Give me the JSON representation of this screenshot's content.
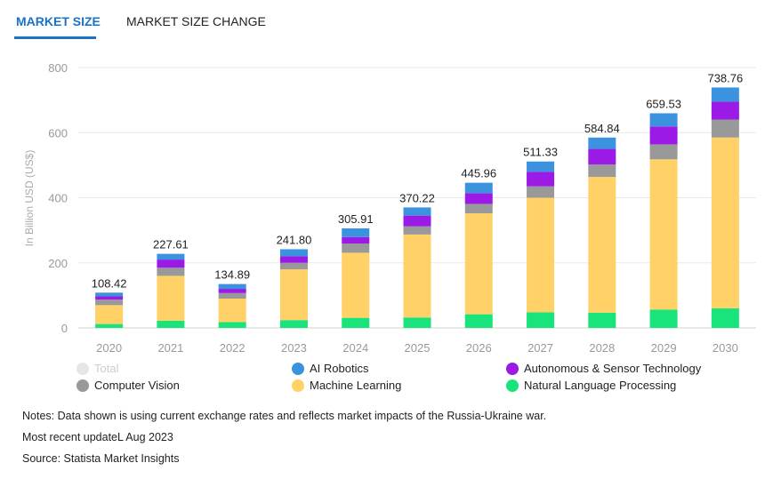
{
  "tabs": [
    {
      "label": "MARKET SIZE",
      "active": true
    },
    {
      "label": "MARKET SIZE CHANGE",
      "active": false
    }
  ],
  "colors": {
    "accent": "#1a73c9",
    "Total": "#e6e6e6",
    "AI Robotics": "#3b93e0",
    "Autonomous & Sensor Technology": "#9b1ae6",
    "Computer Vision": "#999999",
    "Machine Learning": "#ffd166",
    "Natural Language Processing": "#19e37b"
  },
  "chart_data": {
    "type": "bar",
    "stacked": true,
    "ylabel": "In Billion USD (US$)",
    "xlabel": "",
    "ylim": [
      0,
      800
    ],
    "yticks": [
      0,
      200,
      400,
      600,
      800
    ],
    "grid": true,
    "categories": [
      "2020",
      "2021",
      "2022",
      "2023",
      "2024",
      "2025",
      "2026",
      "2027",
      "2028",
      "2029",
      "2030"
    ],
    "totals": [
      108.42,
      227.61,
      134.89,
      241.8,
      305.91,
      370.22,
      445.96,
      511.33,
      584.84,
      659.53,
      738.76
    ],
    "total_labels": [
      "108.42",
      "227.61",
      "134.89",
      "241.80",
      "305.91",
      "370.22",
      "445.96",
      "511.33",
      "584.84",
      "659.53",
      "738.76"
    ],
    "series": [
      {
        "name": "Natural Language Processing",
        "values": [
          12,
          22,
          18,
          24,
          31,
          32,
          42,
          48,
          47,
          56,
          60
        ]
      },
      {
        "name": "Machine Learning",
        "values": [
          58,
          138,
          72,
          156,
          200,
          255,
          310,
          352,
          417,
          462,
          525
        ]
      },
      {
        "name": "Computer Vision",
        "values": [
          17,
          25,
          17,
          20,
          28,
          25,
          29,
          35,
          38,
          46,
          55
        ]
      },
      {
        "name": "Autonomous & Sensor Technology",
        "values": [
          10,
          25,
          13,
          20,
          20,
          33,
          33,
          45,
          48,
          55,
          55
        ]
      },
      {
        "name": "AI Robotics",
        "values": [
          11.42,
          17.61,
          14.89,
          21.8,
          26.91,
          25.22,
          31.96,
          31.33,
          34.84,
          40.53,
          43.76
        ]
      }
    ],
    "legend": [
      {
        "name": "Total",
        "disabled": true
      },
      {
        "name": "AI Robotics"
      },
      {
        "name": "Autonomous & Sensor Technology"
      },
      {
        "name": "Computer Vision"
      },
      {
        "name": "Machine Learning"
      },
      {
        "name": "Natural Language Processing"
      }
    ]
  },
  "notes": {
    "line1": "Notes: Data shown is using current exchange rates and reflects market impacts of the Russia-Ukraine war.",
    "line2": "Most recent updateL Aug 2023",
    "line3": "Source: Statista Market Insights"
  }
}
